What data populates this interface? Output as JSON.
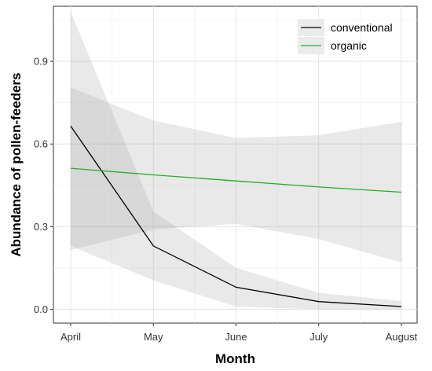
{
  "chart_data": {
    "type": "line",
    "title": "",
    "xlabel": "Month",
    "ylabel": "Abundance of pollen-feeders",
    "categories": [
      "April",
      "May",
      "June",
      "July",
      "August"
    ],
    "ylim": [
      -0.05,
      1.1
    ],
    "yticks": [
      0.0,
      0.3,
      0.6,
      0.9
    ],
    "ytick_labels": [
      "0.0",
      "0.3",
      "0.6",
      "0.9"
    ],
    "grid": true,
    "legend_position": "top-right",
    "series": [
      {
        "name": "conventional",
        "color": "#000000",
        "values": [
          0.665,
          0.23,
          0.08,
          0.028,
          0.01
        ],
        "ci_lower": [
          0.23,
          0.105,
          0.01,
          0.0,
          0.0
        ],
        "ci_upper": [
          1.08,
          0.355,
          0.15,
          0.06,
          0.03
        ]
      },
      {
        "name": "organic",
        "color": "#22b022",
        "values": [
          0.512,
          0.488,
          0.466,
          0.444,
          0.425
        ],
        "ci_lower": [
          0.215,
          0.29,
          0.31,
          0.255,
          0.17
        ],
        "ci_upper": [
          0.805,
          0.685,
          0.622,
          0.632,
          0.68
        ]
      }
    ]
  }
}
